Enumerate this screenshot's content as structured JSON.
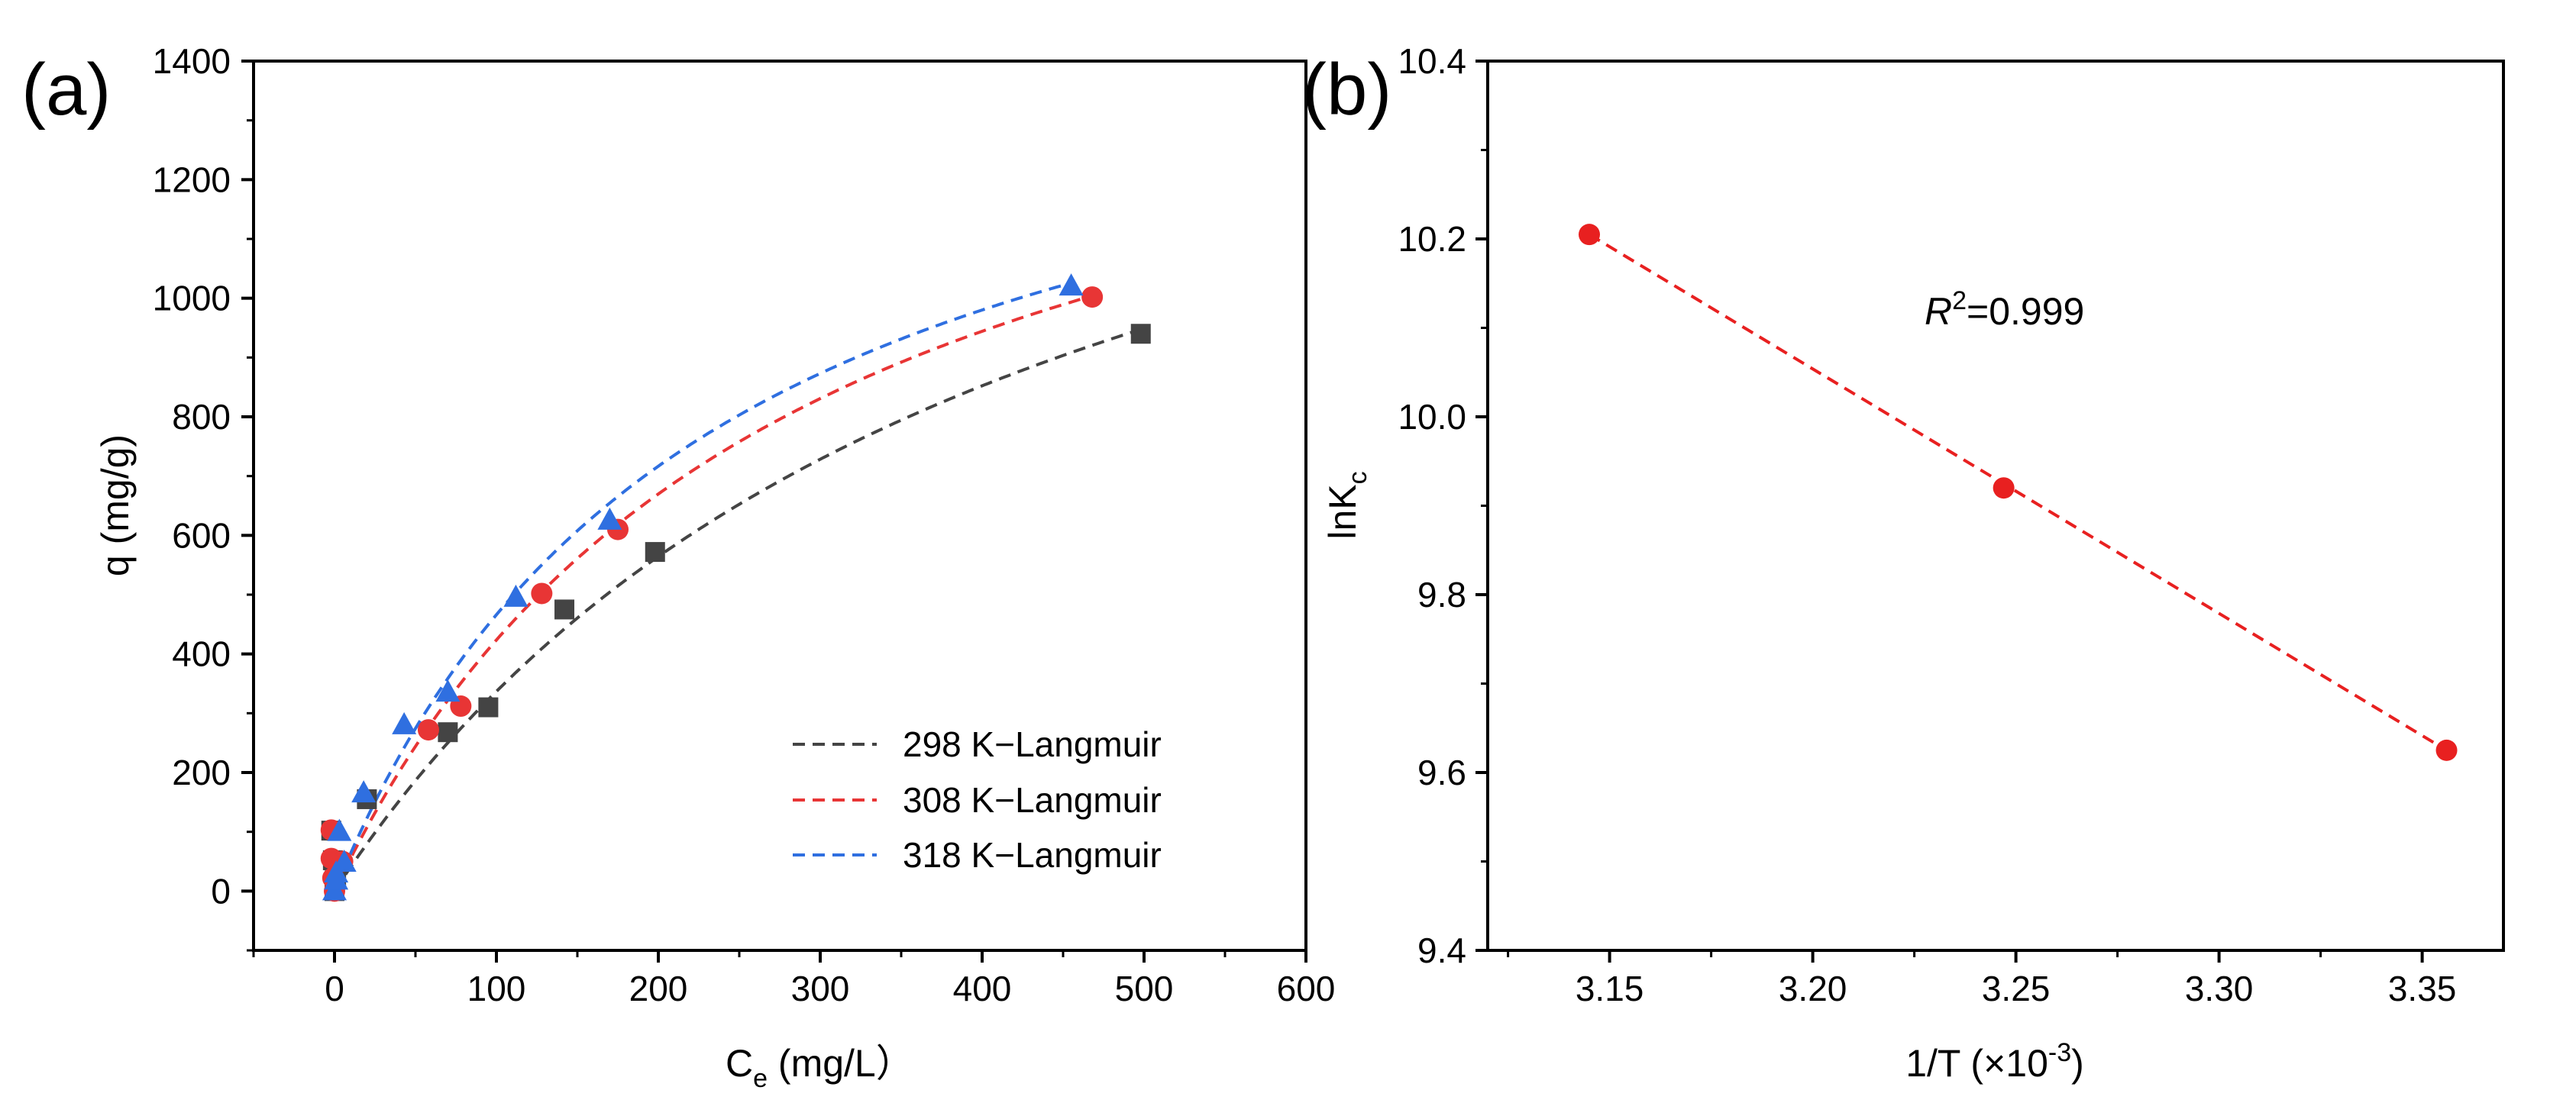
{
  "chart_data": [
    {
      "panel_label": "(a)",
      "type": "scatter",
      "xlabel": {
        "main": "C",
        "sub": "e",
        "rest": " (mg/L）"
      },
      "ylabel": "q (mg/g)",
      "xlim": [
        -50,
        600
      ],
      "ylim": [
        -100,
        1400
      ],
      "xticks": [
        0,
        100,
        200,
        300,
        400,
        500,
        600
      ],
      "yticks": [
        0,
        200,
        400,
        600,
        800,
        1000,
        1200,
        1400
      ],
      "grid": false,
      "legend_position": "bottom-right",
      "series": [
        {
          "name": "298 K",
          "marker": "square",
          "color": "#444444",
          "points": [
            [
              0,
              0
            ],
            [
              0,
              18
            ],
            [
              -1,
              52
            ],
            [
              -2,
              102
            ],
            [
              1,
              20
            ],
            [
              20,
              155
            ],
            [
              70,
              268
            ],
            [
              95,
              310
            ],
            [
              142,
              475
            ],
            [
              198,
              572
            ],
            [
              498,
              940
            ]
          ]
        },
        {
          "name": "308 K",
          "marker": "circle",
          "color": "#e83535",
          "points": [
            [
              0,
              0
            ],
            [
              -1,
              22
            ],
            [
              -2,
              55
            ],
            [
              -2,
              103
            ],
            [
              5,
              50
            ],
            [
              58,
              272
            ],
            [
              78,
              312
            ],
            [
              128,
              502
            ],
            [
              175,
              610
            ],
            [
              468,
              1002
            ]
          ]
        },
        {
          "name": "318 K",
          "marker": "triangle",
          "color": "#2f6fe0",
          "points": [
            [
              0,
              0
            ],
            [
              1,
              18
            ],
            [
              1,
              30
            ],
            [
              3,
              100
            ],
            [
              6,
              48
            ],
            [
              18,
              165
            ],
            [
              43,
              280
            ],
            [
              70,
              335
            ],
            [
              112,
              495
            ],
            [
              170,
              625
            ],
            [
              455,
              1020
            ]
          ]
        }
      ],
      "fits": [
        {
          "name": "298 K−Langmuir",
          "color": "#444444",
          "qm": 1740,
          "K": 0.0024,
          "x_range": [
            0,
            500
          ]
        },
        {
          "name": "308 K−Langmuir",
          "color": "#e83535",
          "qm": 1600,
          "K": 0.0036,
          "x_range": [
            0,
            470
          ]
        },
        {
          "name": "318 K−Langmuir",
          "color": "#2f6fe0",
          "qm": 1550,
          "K": 0.0043,
          "x_range": [
            0,
            455
          ]
        }
      ]
    },
    {
      "panel_label": "(b)",
      "type": "scatter",
      "xlabel": {
        "main": "1/T (×10",
        "sup": "-3",
        "rest": ")"
      },
      "ylabel": {
        "main": "lnK",
        "sub": "c"
      },
      "xlim": [
        3.12,
        3.37
      ],
      "ylim": [
        9.4,
        10.4
      ],
      "xticks": [
        "3.15",
        "3.20",
        "3.25",
        "3.30",
        "3.35"
      ],
      "yticks": [
        "9.4",
        "9.6",
        "9.8",
        "10.0",
        "10.2",
        "10.4"
      ],
      "grid": false,
      "series": [
        {
          "name": "lnKc",
          "marker": "circle",
          "color": "#e82020",
          "points": [
            [
              3.145,
              10.205
            ],
            [
              3.247,
              9.92
            ],
            [
              3.356,
              9.625
            ]
          ]
        }
      ],
      "fit": {
        "color": "#e82020",
        "x_range": [
          3.145,
          3.356
        ],
        "y_range": [
          10.205,
          9.625
        ]
      },
      "annotation": {
        "italic": "R",
        "sup": "2",
        "text": "=0.999"
      }
    }
  ]
}
